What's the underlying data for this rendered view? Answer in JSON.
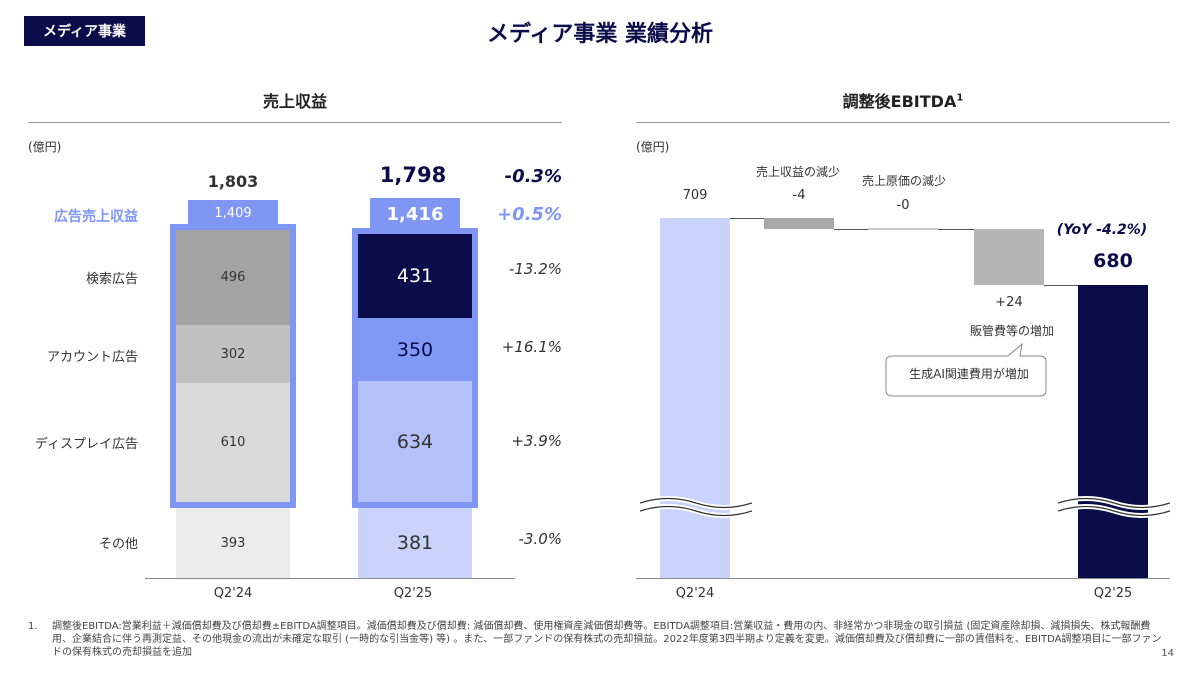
{
  "header": {
    "tag": "メディア事業",
    "title": "メディア事業 業績分析"
  },
  "colors": {
    "navy": "#0b0c4a",
    "ad_blue": "#7f96f5",
    "light_blue": "#c9d3fb",
    "mid_blue": "#b3c1f8",
    "gray_dark": "#a3a3a3",
    "gray_mid": "#c1c1c1",
    "gray_light": "#d9d9d9",
    "gray_lighter": "#ececec"
  },
  "chart_data": [
    {
      "type": "bar",
      "title": "売上収益",
      "unit": "(億円)",
      "categories": [
        "Q2'24",
        "Q2'25"
      ],
      "totals": [
        1803,
        1798
      ],
      "totals_display": [
        "1,803",
        "1,798"
      ],
      "total_change": "-0.3%",
      "ad_revenue": {
        "name": "広告売上収益",
        "values": [
          1409,
          1416
        ],
        "display": [
          "1,409",
          "1,416"
        ],
        "change": "+0.5%"
      },
      "series": [
        {
          "name": "検索広告",
          "values": [
            496,
            431
          ],
          "change": "-13.2%"
        },
        {
          "name": "アカウント広告",
          "values": [
            302,
            350
          ],
          "change": "+16.1%"
        },
        {
          "name": "ディスプレイ広告",
          "values": [
            610,
            634
          ],
          "change": "+3.9%"
        },
        {
          "name": "その他",
          "values": [
            393,
            381
          ],
          "change": "-3.0%"
        }
      ]
    },
    {
      "type": "waterfall",
      "title": "調整後EBITDA",
      "title_sup": "1",
      "unit": "(億円)",
      "start": {
        "label": "Q2'24",
        "value": 709
      },
      "steps": [
        {
          "name": "売上収益の減少",
          "value": -4,
          "display": "-4"
        },
        {
          "name": "売上原価の減少",
          "value": 0,
          "display": "-0"
        },
        {
          "name": "販管費等の増加",
          "value": 24,
          "display": "+24"
        }
      ],
      "end": {
        "label": "Q2'25",
        "value": 680
      },
      "yoy": "(YoY -4.2%)",
      "callout": "生成AI関連費用が増加"
    }
  ],
  "footnote": {
    "number": "1.",
    "text": "調整後EBITDA:営業利益＋減価償却費及び償却費±EBITDA調整項目。減価償却費及び償却費: 減価償却費、使用権資産減価償却費等。EBITDA調整項目:営業収益・費用の内、非経常かつ非現金の取引損益 (固定資産除却損、減損損失、株式報酬費用、企業結合に伴う再測定益、その他現金の流出が未確定な取引 (一時的な引当金等) 等) 。また、一部ファンドの保有株式の売却損益。2022年度第3四半期より定義を変更。減価償却費及び償却費に一部の賃借料を、EBITDA調整項目に一部ファンドの保有株式の売却損益を追加"
  },
  "page_number": "14"
}
